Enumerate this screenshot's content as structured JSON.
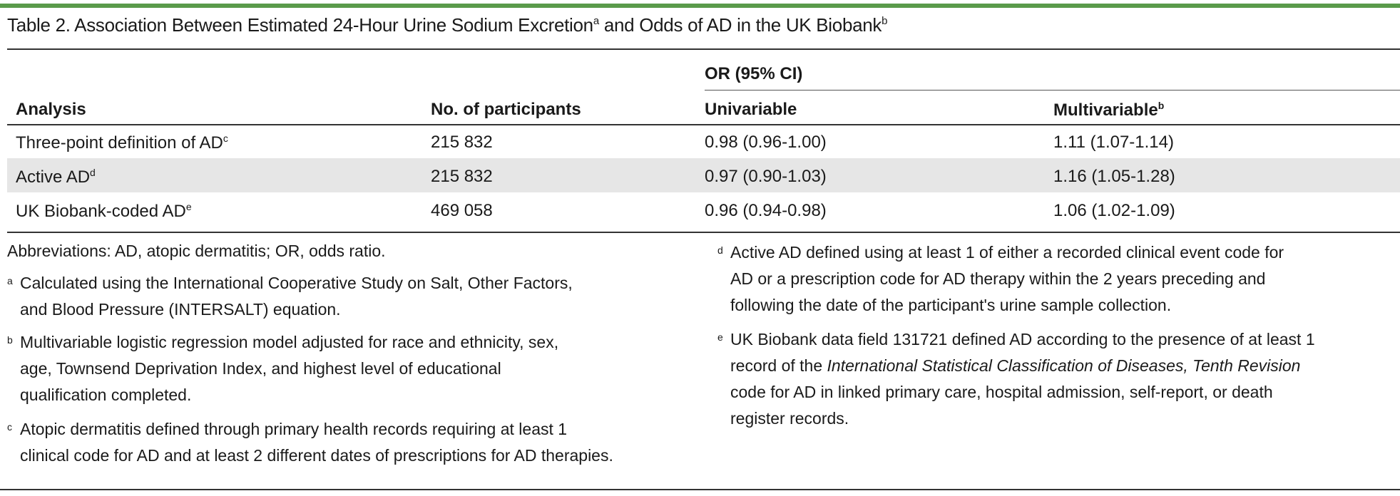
{
  "table": {
    "title": "Table 2. Association Between Estimated 24-Hour Urine Sodium Excretion",
    "title_sup_a": "a",
    "title_mid": " and Odds of AD in the UK Biobank",
    "title_sup_b": "b",
    "group_header": "OR (95% CI)",
    "headers": {
      "analysis": "Analysis",
      "participants": "No. of participants",
      "univariable": "Univariable",
      "multivariable": "Multivariable",
      "multivariable_sup": "b"
    },
    "rows": [
      {
        "analysis": "Three-point definition of AD",
        "sup": "c",
        "participants": "215 832",
        "univariable": "0.98 (0.96-1.00)",
        "multivariable": "1.11 (1.07-1.14)"
      },
      {
        "analysis": "Active AD",
        "sup": "d",
        "participants": "215 832",
        "univariable": "0.97 (0.90-1.03)",
        "multivariable": "1.16 (1.05-1.28)"
      },
      {
        "analysis": "UK Biobank-coded AD",
        "sup": "e",
        "participants": "469 058",
        "univariable": "0.96 (0.94-0.98)",
        "multivariable": "1.06 (1.02-1.09)"
      }
    ]
  },
  "footnotes": {
    "abbreviations": "Abbreviations: AD, atopic dermatitis; OR, odds ratio.",
    "a": {
      "mark": "a",
      "lines": [
        "Calculated using the International Cooperative Study on Salt, Other Factors,",
        "and Blood Pressure (INTERSALT) equation."
      ]
    },
    "b": {
      "mark": "b",
      "lines": [
        "Multivariable logistic regression model adjusted for race and ethnicity, sex,",
        "age, Townsend Deprivation Index, and highest level of educational",
        "qualification completed."
      ]
    },
    "c": {
      "mark": "c",
      "lines": [
        "Atopic dermatitis defined through primary health records requiring at least 1",
        "clinical code for AD and at least 2 different dates of prescriptions for AD therapies."
      ]
    },
    "d": {
      "mark": "d",
      "lines": [
        "Active AD defined using at least 1 of either a recorded clinical event code for",
        "AD or a prescription code for AD therapy within the 2 years preceding and",
        "following the date of the participant's urine sample collection."
      ]
    },
    "e": {
      "mark": "e",
      "line1": "UK Biobank data field 131721 defined AD according to the presence of at least 1",
      "line2_pre": "record of the ",
      "line2_italic": "International Statistical Classification of Diseases, Tenth Revision",
      "line3": "code for AD in linked primary care, hospital admission, self-report, or death",
      "line4": "register records."
    }
  }
}
